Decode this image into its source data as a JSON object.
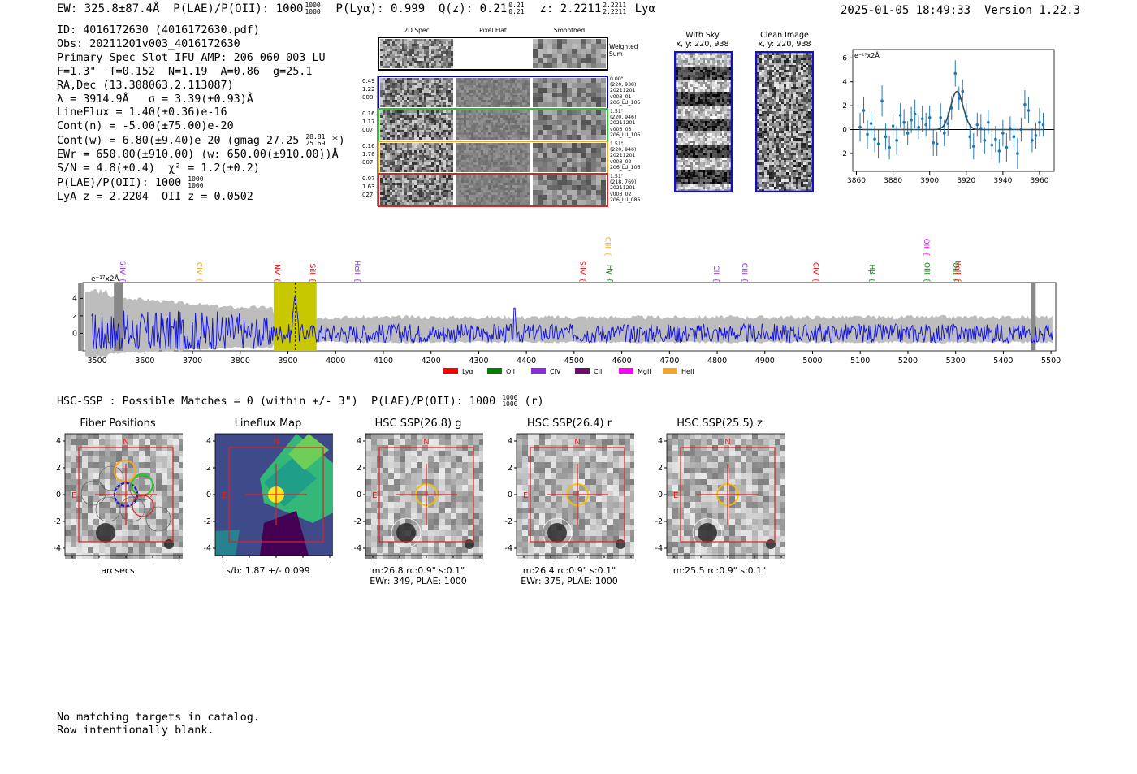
{
  "header": {
    "ew": "EW: 325.8±87.4Å  P(LAE)/P(OII): 1000",
    "ew_frac_top": "1000",
    "ew_frac_bot": "1000",
    "plya": "  P(Lyα): 0.999  Q(z): 0.21",
    "qz_top": "0.21",
    "qz_bot": "0.21",
    "z": "  z: 2.2211",
    "z_top": "2.2211",
    "z_bot": "2.2211",
    "line": " Lyα",
    "datetime": "2025-01-05 18:49:33",
    "version": "Version 1.22.3"
  },
  "info": {
    "id": "ID: 4016172630 (4016172630.pdf)",
    "obs": "Obs: 20211201v003_4016172630",
    "primary": "Primary Spec_Slot_IFU_AMP: 206_060_003_LU",
    "params": "F=1.3\"  T=0.152  N=1.19  A=0.86  g=25.1",
    "radec": "RA,Dec (13.308063,2.113087)",
    "lambda": "λ = 3914.9Å   σ = 3.39(±0.93)Å",
    "lineflux": "LineFlux = 1.40(±0.36)e-16",
    "contn": "Cont(n) = -5.00(±75.00)e-20",
    "contw": "Cont(w) = 6.80(±9.40)e-20 (gmag 27.25",
    "gmag_top": "28.81",
    "gmag_bot": "25.69",
    "contw_end": " *)",
    "ewr": "EWr = 650.00(±910.00) (w: 650.00(±910.00))Å",
    "sn": "S/N = 4.8(±0.4)  χ² = 1.2(±0.2)",
    "plae": "P(LAE)/P(OII): 1000",
    "plae_top": "1000",
    "plae_bot": "1000",
    "lya": "LyA z = 2.2204  OII z = 0.0502"
  },
  "cutouts": {
    "col_titles": [
      "2D Spec",
      "Pixel Flat",
      "Smoothed"
    ],
    "weighted_sum": "Weighted Sum",
    "rows": [
      {
        "left": [
          "0.49",
          "1.22",
          "008"
        ],
        "right": [
          "0.00\"",
          "(220, 938)",
          "20211201",
          "v003_01",
          "206_LU_105"
        ],
        "color": "#0000cc"
      },
      {
        "left": [
          "0.16",
          "1.17",
          "007"
        ],
        "right": [
          "1.51\"",
          "(220, 946)",
          "20211201",
          "v003_03",
          "206_LU_106"
        ],
        "color": "#22cc22"
      },
      {
        "left": [
          "0.16",
          "1.76",
          "007"
        ],
        "right": [
          "1.51\"",
          "(220, 946)",
          "20211201",
          "v003_02",
          "206_LU_106"
        ],
        "color": "#f5a623"
      },
      {
        "left": [
          "0.07",
          "1.63",
          "027"
        ],
        "right": [
          "1.51\"",
          "(218, 769)",
          "20211201",
          "v003_02",
          "206_LU_086"
        ],
        "color": "#dd2222"
      }
    ]
  },
  "sky": {
    "with_sky": "With Sky",
    "with_sky_xy": "x, y: 220, 938",
    "clean": "Clean Image",
    "clean_xy": "x, y: 220, 938"
  },
  "zoom_chart": {
    "type": "scatter",
    "unit_label": "e⁻¹⁷x2Å",
    "x_ticks": [
      3860,
      3880,
      3900,
      3920,
      3940,
      3960
    ],
    "y_ticks": [
      -2,
      0,
      2,
      4,
      6
    ],
    "xlim": [
      3858,
      3968
    ],
    "ylim": [
      -3.5,
      6.7
    ],
    "x": [
      3862,
      3864,
      3866,
      3868,
      3870,
      3872,
      3874,
      3876,
      3878,
      3880,
      3882,
      3884,
      3886,
      3888,
      3890,
      3892,
      3894,
      3896,
      3898,
      3900,
      3902,
      3904,
      3906,
      3908,
      3910,
      3912,
      3914,
      3916,
      3918,
      3920,
      3922,
      3924,
      3926,
      3928,
      3930,
      3932,
      3934,
      3936,
      3938,
      3940,
      3942,
      3944,
      3946,
      3948,
      3950,
      3952,
      3954,
      3956,
      3958,
      3960,
      3962
    ],
    "y": [
      0.2,
      1.6,
      -0.4,
      0.5,
      -0.8,
      -1.2,
      2.4,
      -0.6,
      -1.5,
      0.3,
      -0.9,
      1.2,
      0.6,
      -0.3,
      0.8,
      1.3,
      0.2,
      0.9,
      0.4,
      1.0,
      -1.1,
      -1.2,
      1.0,
      -0.3,
      0.5,
      1.8,
      4.7,
      2.6,
      3.2,
      1.1,
      -0.6,
      -1.4,
      0.4,
      0.1,
      -0.9,
      0.6,
      -1.3,
      -0.8,
      -1.8,
      -0.3,
      -1.5,
      0.1,
      -0.6,
      -2.0,
      0.0,
      2.1,
      1.6,
      -0.9,
      -0.5,
      0.6,
      0.4
    ],
    "err": [
      1.2,
      1.1,
      1.2,
      1.0,
      1.1,
      1.2,
      1.3,
      1.1,
      1.0,
      1.1,
      1.2,
      1.0,
      1.1,
      1.0,
      1.1,
      1.2,
      1.0,
      1.1,
      1.0,
      1.0,
      1.1,
      1.0,
      1.2,
      1.1,
      1.0,
      1.0,
      1.1,
      1.0,
      1.0,
      1.1,
      1.0,
      1.1,
      1.0,
      1.2,
      1.1,
      1.0,
      1.2,
      1.1,
      1.0,
      1.1,
      1.2,
      1.0,
      1.1,
      1.3,
      1.0,
      1.2,
      1.1,
      1.0,
      1.1,
      1.2,
      1.0
    ],
    "fit": {
      "center": 3914.9,
      "sigma": 3.39,
      "amp": 3.2
    }
  },
  "spectrum_chart": {
    "type": "line",
    "unit_label": "e⁻¹⁷x2Å",
    "xlim": [
      3470,
      5510
    ],
    "ylim": [
      -2,
      5.8
    ],
    "x_ticks": [
      3500,
      3600,
      3700,
      3800,
      3900,
      4000,
      4100,
      4200,
      4300,
      4400,
      4500,
      4600,
      4700,
      4800,
      4900,
      5000,
      5100,
      5200,
      5300,
      5400,
      5500
    ],
    "y_ticks": [
      0,
      2,
      4
    ],
    "highlight_range": [
      3870,
      3960
    ],
    "emission_line": 3915,
    "lines": [
      {
        "name": "SiIV",
        "x": 3543,
        "color": "#8a2be2",
        "tier": 2
      },
      {
        "name": "CIV",
        "x": 3704,
        "color": "#f5a623",
        "tier": 2
      },
      {
        "name": "NV",
        "x": 3868,
        "color": "#ff0000",
        "tier": 2
      },
      {
        "name": "SiII",
        "x": 3942,
        "color": "#ff0000",
        "tier": 2
      },
      {
        "name": "HeII",
        "x": 4035,
        "color": "#8a2be2",
        "tier": 2
      },
      {
        "name": "SiIV",
        "x": 4508,
        "color": "#ff0000",
        "tier": 2
      },
      {
        "name": "CIII",
        "x": 4561,
        "color": "#f5a623",
        "tier": 0
      },
      {
        "name": "Hγ",
        "x": 4565,
        "color": "#008000",
        "tier": 2
      },
      {
        "name": "CII",
        "x": 4788,
        "color": "#8a2be2",
        "tier": 2
      },
      {
        "name": "CIII",
        "x": 4848,
        "color": "#8a2be2",
        "tier": 2
      },
      {
        "name": "CIV",
        "x": 4997,
        "color": "#ff0000",
        "tier": 2
      },
      {
        "name": "Hβ",
        "x": 5115,
        "color": "#008000",
        "tier": 2
      },
      {
        "name": "OII",
        "x": 5229,
        "color": "#ff00ff",
        "tier": 0
      },
      {
        "name": "OIII",
        "x": 5230,
        "color": "#008000",
        "tier": 2
      },
      {
        "name": "OIII",
        "x": 5290,
        "color": "#008000",
        "tier": 2
      },
      {
        "name": "HeII",
        "x": 5295,
        "color": "#ff0000",
        "tier": 2
      }
    ],
    "legend": [
      {
        "name": "Lyα",
        "color": "#ff0000"
      },
      {
        "name": "OII",
        "color": "#008000"
      },
      {
        "name": "CIV",
        "color": "#8a2be2"
      },
      {
        "name": "CIII",
        "color": "#6a0d6a"
      },
      {
        "name": "MgII",
        "color": "#ff00ff"
      },
      {
        "name": "HeII",
        "color": "#f5a623"
      }
    ]
  },
  "hsc_header": "HSC-SSP : Possible Matches = 0 (within +/- 3\")  P(LAE)/P(OII): 1000",
  "hsc_frac_top": "1000",
  "hsc_frac_bot": "1000",
  "hsc_suffix": " (r)",
  "stamps": [
    {
      "title": "Fiber Positions",
      "cap1": "arcsecs",
      "cap2": ""
    },
    {
      "title": "Lineflux Map",
      "cap1": "s/b: 1.87 +/- 0.099",
      "cap2": ""
    },
    {
      "title": "HSC SSP(26.8) g",
      "cap1": "m:26.8 rc:0.9\"  s:0.1\"",
      "cap2": "EWr: 349, PLAE: 1000"
    },
    {
      "title": "HSC SSP(26.4) r",
      "cap1": "m:26.4 rc:0.9\"  s:0.1\"",
      "cap2": "EWr: 375, PLAE: 1000"
    },
    {
      "title": "HSC SSP(25.5) z",
      "cap1": "m:25.5 rc:0.9\"  s:0.1\"",
      "cap2": ""
    }
  ],
  "stamp_axis": {
    "ticks": [
      -4,
      -2,
      0,
      2,
      4
    ],
    "north": "N",
    "east": "E"
  },
  "footer": {
    "line1": "No matching targets in catalog.",
    "line2": "Row intentionally blank."
  }
}
